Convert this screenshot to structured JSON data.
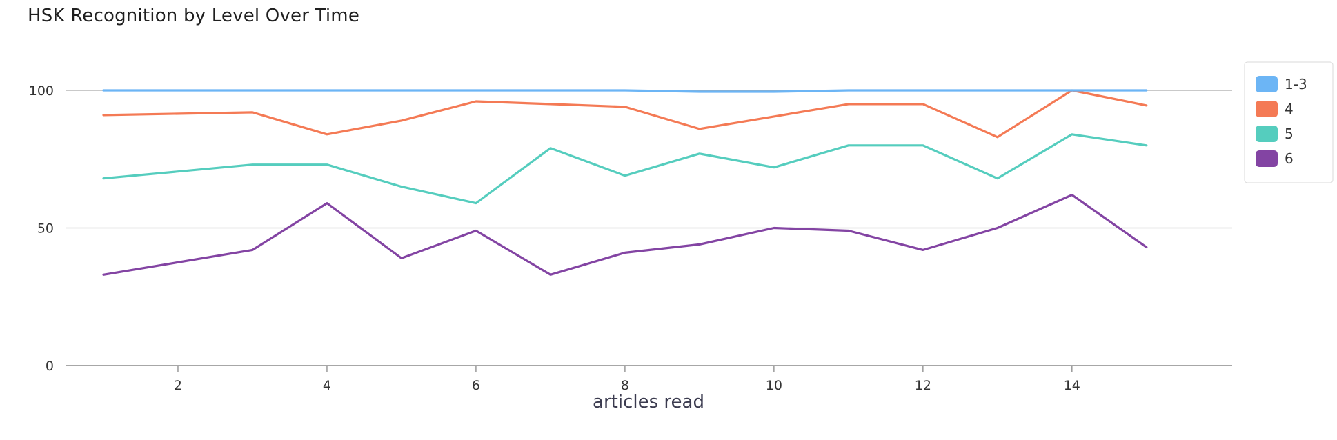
{
  "chart_data": {
    "type": "line",
    "title": "HSK Recognition by Level Over Time",
    "xlabel": "articles read",
    "ylabel": "",
    "xlim": [
      0.5,
      16.15
    ],
    "ylim": [
      0,
      100
    ],
    "xticks": [
      2,
      4,
      6,
      8,
      10,
      12,
      14
    ],
    "yticks": [
      0,
      50,
      100
    ],
    "grid": true,
    "legend_position": "top-right",
    "x": [
      1,
      3,
      4,
      5,
      6,
      7,
      8,
      9,
      10,
      11,
      12,
      13,
      14,
      15
    ],
    "series": [
      {
        "name": "1-3",
        "color": "#6cb5f5",
        "values": [
          100,
          100,
          100,
          100,
          100,
          100,
          100,
          99.5,
          99.5,
          100,
          100,
          100,
          100,
          100
        ]
      },
      {
        "name": "4",
        "color": "#f47a55",
        "values": [
          91,
          92,
          84,
          89,
          96,
          95,
          94,
          86,
          90.5,
          95,
          95,
          83,
          100,
          94.5
        ]
      },
      {
        "name": "5",
        "color": "#55cdbe",
        "values": [
          68,
          73,
          73,
          65,
          59,
          79,
          69,
          77,
          72,
          80,
          80,
          68,
          84,
          80
        ]
      },
      {
        "name": "6",
        "color": "#8344a3",
        "values": [
          33,
          42,
          59,
          39,
          49,
          33,
          41,
          44,
          50,
          49,
          42,
          50,
          62,
          43
        ]
      }
    ]
  }
}
